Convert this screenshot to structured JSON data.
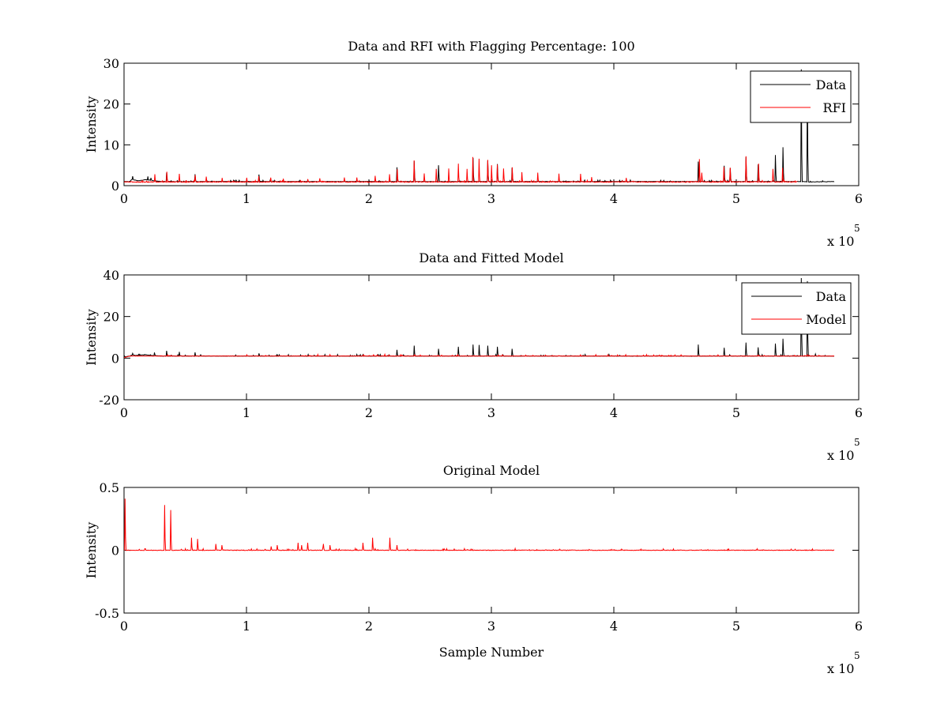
{
  "colors": {
    "data": "#000000",
    "rfi": "#ff0000",
    "model": "#ff0000",
    "axis": "#000000",
    "background": "#ffffff"
  },
  "chart_data": [
    {
      "type": "line",
      "title": "Data and RFI with Flagging Percentage: 100",
      "xlabel": "",
      "ylabel": "Intensity",
      "xlim": [
        0,
        6
      ],
      "ylim": [
        0,
        30
      ],
      "xticks": [
        0,
        1,
        2,
        3,
        4,
        5,
        6
      ],
      "yticks": [
        0,
        10,
        20,
        30
      ],
      "x_multiplier_base": "x 10",
      "x_multiplier_exp": "5",
      "x_range_max": 5.8,
      "legend": {
        "position": "top-right",
        "entries": [
          "Data",
          "RFI"
        ]
      },
      "series": [
        {
          "name": "Data",
          "color": "#000000",
          "baseline": 1.0,
          "noise": 0.05,
          "segments": [
            [
              0,
              1.0
            ],
            [
              0.05,
              1.0
            ],
            [
              0.06,
              1.5
            ],
            [
              0.1,
              1.3
            ],
            [
              0.12,
              1.2
            ],
            [
              0.18,
              1.5
            ],
            [
              0.22,
              1.3
            ],
            [
              0.3,
              1.0
            ],
            [
              5.55,
              1.0
            ],
            [
              5.6,
              0.9
            ],
            [
              5.8,
              1.0
            ]
          ],
          "peaks": [
            [
              0.07,
              2.3
            ],
            [
              0.22,
              1.9
            ],
            [
              0.35,
              3.2
            ],
            [
              0.58,
              2.8
            ],
            [
              1.1,
              2.4
            ],
            [
              2.23,
              4.5
            ],
            [
              2.37,
              6.0
            ],
            [
              2.57,
              5.0
            ],
            [
              2.85,
              6.8
            ],
            [
              2.97,
              6.2
            ],
            [
              3.05,
              5.3
            ],
            [
              3.17,
              4.4
            ],
            [
              4.69,
              5.9
            ],
            [
              4.9,
              4.8
            ],
            [
              4.95,
              4.3
            ],
            [
              5.08,
              7.0
            ],
            [
              5.18,
              5.2
            ],
            [
              5.32,
              7.5
            ],
            [
              5.38,
              9.4
            ],
            [
              5.53,
              28.5
            ],
            [
              5.58,
              27.0
            ]
          ]
        },
        {
          "name": "RFI",
          "color": "#ff0000",
          "baseline": 0.9,
          "noise": 0.1,
          "x_end": 5.5,
          "peaks": [
            [
              0.25,
              2.8
            ],
            [
              0.35,
              3.4
            ],
            [
              0.45,
              2.9
            ],
            [
              0.58,
              2.6
            ],
            [
              0.67,
              2.2
            ],
            [
              0.8,
              1.9
            ],
            [
              1.0,
              1.7
            ],
            [
              1.1,
              2.3
            ],
            [
              1.2,
              1.8
            ],
            [
              1.3,
              1.7
            ],
            [
              1.5,
              1.6
            ],
            [
              1.6,
              1.8
            ],
            [
              1.8,
              2.0
            ],
            [
              1.9,
              2.0
            ],
            [
              2.05,
              2.4
            ],
            [
              2.17,
              2.8
            ],
            [
              2.23,
              4.0
            ],
            [
              2.37,
              6.2
            ],
            [
              2.45,
              3.0
            ],
            [
              2.55,
              4.1
            ],
            [
              2.65,
              4.2
            ],
            [
              2.73,
              5.4
            ],
            [
              2.8,
              4.1
            ],
            [
              2.85,
              7.0
            ],
            [
              2.9,
              6.6
            ],
            [
              2.97,
              6.3
            ],
            [
              3.0,
              5.0
            ],
            [
              3.05,
              5.0
            ],
            [
              3.1,
              4.2
            ],
            [
              3.17,
              4.5
            ],
            [
              3.25,
              3.3
            ],
            [
              3.38,
              3.2
            ],
            [
              3.55,
              2.8
            ],
            [
              3.73,
              2.9
            ],
            [
              3.82,
              2.1
            ],
            [
              4.1,
              1.9
            ],
            [
              4.7,
              6.5
            ],
            [
              4.72,
              3.2
            ],
            [
              4.9,
              4.6
            ],
            [
              4.95,
              4.4
            ],
            [
              5.08,
              7.2
            ],
            [
              5.18,
              5.4
            ],
            [
              5.3,
              4.0
            ],
            [
              5.38,
              4.3
            ]
          ]
        }
      ]
    },
    {
      "type": "line",
      "title": "Data and Fitted Model",
      "xlabel": "",
      "ylabel": "Intensity",
      "xlim": [
        0,
        6
      ],
      "ylim": [
        -20,
        40
      ],
      "xticks": [
        0,
        1,
        2,
        3,
        4,
        5,
        6
      ],
      "yticks": [
        -20,
        0,
        20,
        40
      ],
      "x_multiplier_base": "x 10",
      "x_multiplier_exp": "5",
      "x_range_max": 5.8,
      "legend": {
        "position": "top-right",
        "entries": [
          "Data",
          "Model"
        ]
      },
      "series": [
        {
          "name": "Data",
          "color": "#000000",
          "baseline": 1.0,
          "noise": 0.1,
          "segments": [
            [
              0,
              0.5
            ],
            [
              0.05,
              1.0
            ],
            [
              0.06,
              1.5
            ],
            [
              0.1,
              1.3
            ],
            [
              0.18,
              1.6
            ],
            [
              0.22,
              1.3
            ],
            [
              0.3,
              1.0
            ],
            [
              5.8,
              1.0
            ]
          ],
          "peaks": [
            [
              0.07,
              2.3
            ],
            [
              0.25,
              2.7
            ],
            [
              0.35,
              3.5
            ],
            [
              0.45,
              3.0
            ],
            [
              0.58,
              2.8
            ],
            [
              1.1,
              2.3
            ],
            [
              2.23,
              4.0
            ],
            [
              2.37,
              6.0
            ],
            [
              2.57,
              4.5
            ],
            [
              2.73,
              5.5
            ],
            [
              2.85,
              6.5
            ],
            [
              2.9,
              6.3
            ],
            [
              2.97,
              6.0
            ],
            [
              3.05,
              5.5
            ],
            [
              3.17,
              4.5
            ],
            [
              4.69,
              6.5
            ],
            [
              4.9,
              5.0
            ],
            [
              5.08,
              7.5
            ],
            [
              5.18,
              5.2
            ],
            [
              5.32,
              7.0
            ],
            [
              5.38,
              9.3
            ],
            [
              5.53,
              38.5
            ],
            [
              5.58,
              37.0
            ]
          ]
        },
        {
          "name": "Model",
          "color": "#ff0000",
          "baseline": 1.0,
          "noise": 0.05,
          "segments": [
            [
              0,
              0.3
            ],
            [
              0.05,
              1.0
            ],
            [
              5.8,
              1.0
            ]
          ],
          "peaks": []
        }
      ]
    },
    {
      "type": "line",
      "title": "Original Model",
      "xlabel": "Sample Number",
      "ylabel": "Intensity",
      "xlim": [
        0,
        6
      ],
      "ylim": [
        -0.5,
        0.5
      ],
      "xticks": [
        0,
        1,
        2,
        3,
        4,
        5,
        6
      ],
      "yticks": [
        -0.5,
        0,
        0.5
      ],
      "x_multiplier_base": "x 10",
      "x_multiplier_exp": "5",
      "x_range_max": 5.8,
      "legend": null,
      "series": [
        {
          "name": "Original Model",
          "color": "#ff0000",
          "baseline": 0.0,
          "noise": 0.002,
          "segments": [
            [
              0,
              0.0
            ],
            [
              5.8,
              0.0
            ]
          ],
          "peaks": [
            [
              0.01,
              0.41
            ],
            [
              0.33,
              0.36
            ],
            [
              0.38,
              0.32
            ],
            [
              0.55,
              0.1
            ],
            [
              0.6,
              0.09
            ],
            [
              0.75,
              0.05
            ],
            [
              0.8,
              0.04
            ],
            [
              1.2,
              0.03
            ],
            [
              1.25,
              0.04
            ],
            [
              1.42,
              0.06
            ],
            [
              1.45,
              0.04
            ],
            [
              1.5,
              0.06
            ],
            [
              1.63,
              0.05
            ],
            [
              1.68,
              0.04
            ],
            [
              1.95,
              0.06
            ],
            [
              2.03,
              0.1
            ],
            [
              2.17,
              0.1
            ],
            [
              2.23,
              0.04
            ]
          ]
        }
      ]
    }
  ]
}
